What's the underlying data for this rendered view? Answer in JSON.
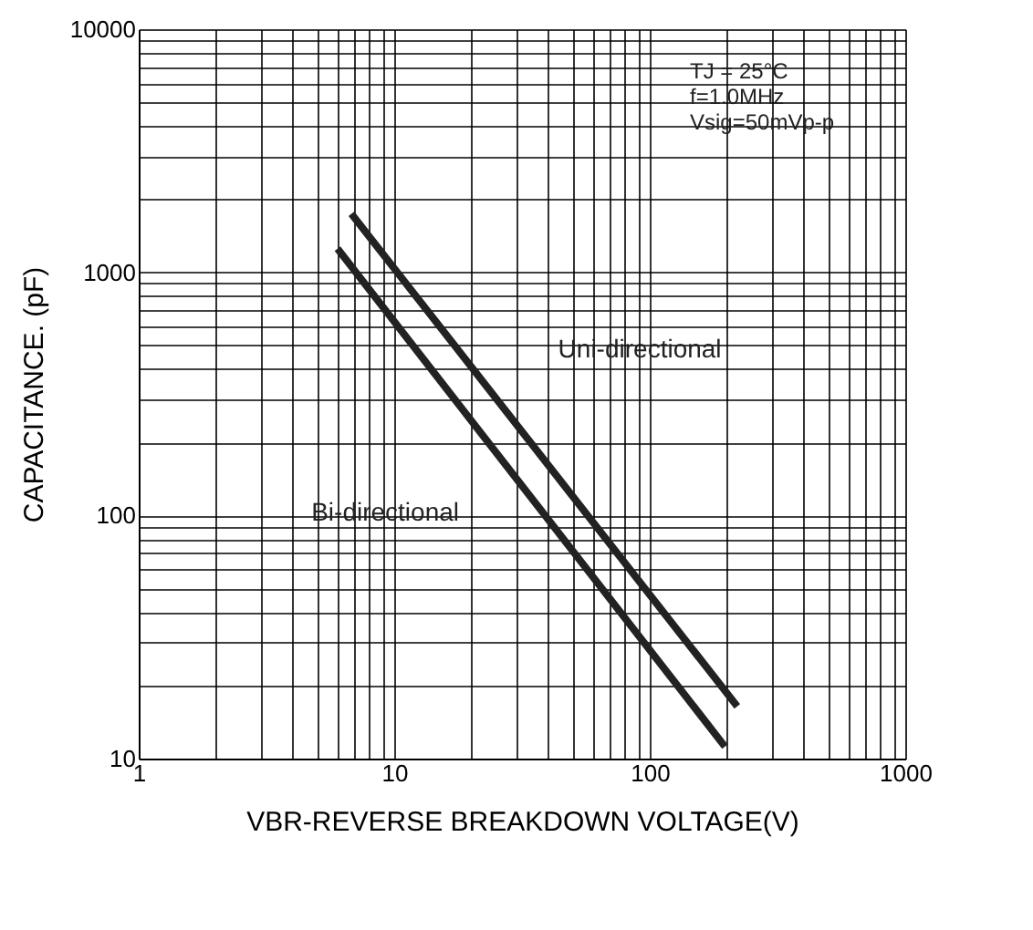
{
  "chart_data": {
    "type": "line",
    "xlabel": "VBR-REVERSE BREAKDOWN VOLTAGE(V)",
    "ylabel": "CAPACITANCE. (pF)",
    "log": "xy",
    "grid": true,
    "marker": "none",
    "line_style": "solid",
    "xlim": [
      1,
      1000
    ],
    "ylim": [
      10,
      10000
    ],
    "xticks": [
      1,
      {
        "value": 2,
        "label": null
      },
      {
        "value": 3,
        "label": null
      },
      {
        "value": 4,
        "label": null
      },
      {
        "value": 5,
        "label": null
      },
      {
        "value": 6,
        "label": null
      },
      {
        "value": 7,
        "label": null
      },
      {
        "value": 8,
        "label": null
      },
      {
        "value": 9,
        "label": null
      },
      10,
      {
        "value": 20,
        "label": null
      },
      {
        "value": 30,
        "label": null
      },
      {
        "value": 40,
        "label": null
      },
      {
        "value": 50,
        "label": null
      },
      {
        "value": 60,
        "label": null
      },
      {
        "value": 70,
        "label": null
      },
      {
        "value": 80,
        "label": null
      },
      {
        "value": 90,
        "label": null
      },
      100,
      {
        "value": 200,
        "label": null
      },
      {
        "value": 300,
        "label": null
      },
      {
        "value": 400,
        "label": null
      },
      {
        "value": 500,
        "label": null
      },
      {
        "value": 600,
        "label": null
      },
      {
        "value": 700,
        "label": null
      },
      {
        "value": 800,
        "label": null
      },
      {
        "value": 900,
        "label": null
      },
      1000
    ],
    "yticks": [
      10,
      {
        "value": 20,
        "label": null
      },
      {
        "value": 30,
        "label": null
      },
      {
        "value": 40,
        "label": null
      },
      {
        "value": 50,
        "label": null
      },
      {
        "value": 60,
        "label": null
      },
      {
        "value": 70,
        "label": null
      },
      {
        "value": 80,
        "label": null
      },
      {
        "value": 90,
        "label": null
      },
      100,
      {
        "value": 200,
        "label": null
      },
      {
        "value": 300,
        "label": null
      },
      {
        "value": 400,
        "label": null
      },
      {
        "value": 500,
        "label": null
      },
      {
        "value": 600,
        "label": null
      },
      {
        "value": 700,
        "label": null
      },
      {
        "value": 800,
        "label": null
      },
      {
        "value": 900,
        "label": null
      },
      1000,
      {
        "value": 2000,
        "label": null
      },
      {
        "value": 3000,
        "label": null
      },
      {
        "value": 4000,
        "label": null
      },
      {
        "value": 5000,
        "label": null
      },
      {
        "value": 6000,
        "label": null
      },
      {
        "value": 7000,
        "label": null
      },
      {
        "value": 8000,
        "label": null
      },
      {
        "value": 9000,
        "label": null
      },
      10000
    ],
    "annotations": [
      "TJ = 25°C",
      "f=1.0MHz",
      "Vsig=50mVp-p"
    ],
    "series": [
      {
        "name": "Uni-directional",
        "color": "#222222",
        "x": [
          6.8,
          220
        ],
        "values": [
          1740,
          16.4
        ]
      },
      {
        "name": "Bi-directional",
        "color": "#222222",
        "x": [
          6.0,
          197
        ],
        "values": [
          1250,
          11.2
        ]
      }
    ]
  }
}
